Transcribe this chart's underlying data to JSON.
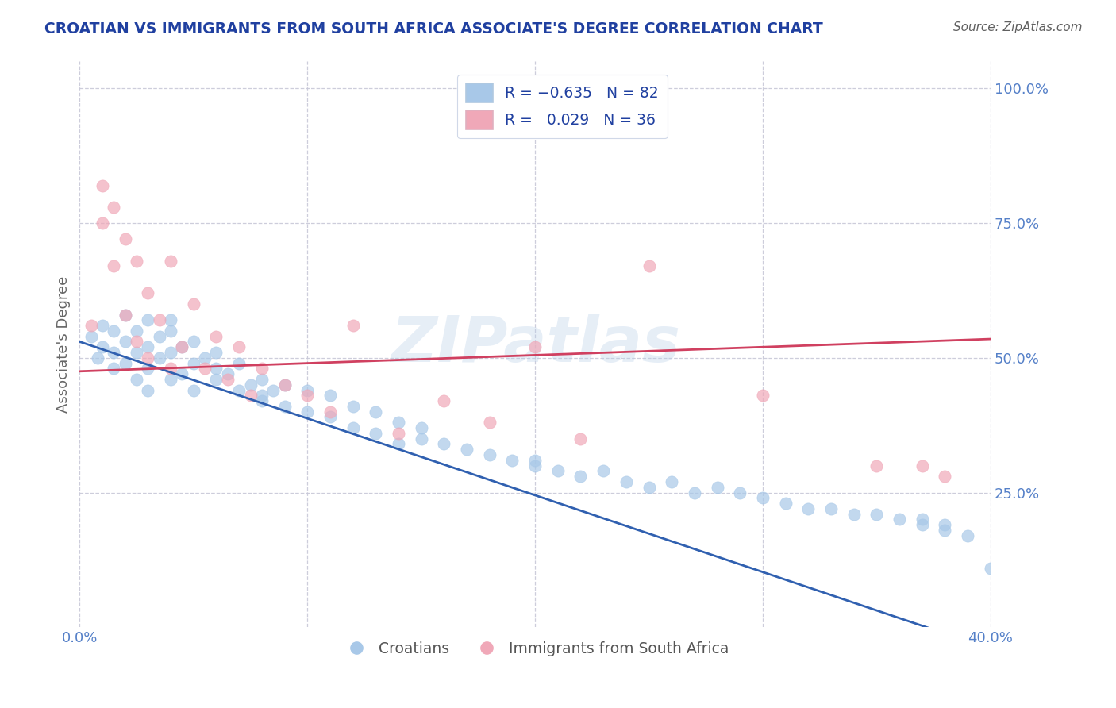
{
  "title": "CROATIAN VS IMMIGRANTS FROM SOUTH AFRICA ASSOCIATE'S DEGREE CORRELATION CHART",
  "source": "Source: ZipAtlas.com",
  "ylabel": "Associate's Degree",
  "watermark": "ZIPatlas",
  "blue_color": "#a8c8e8",
  "pink_color": "#f0a8b8",
  "blue_line_color": "#3060b0",
  "pink_line_color": "#d04060",
  "title_color": "#2040a0",
  "source_color": "#606060",
  "legend_text_color": "#2040a0",
  "background_color": "#ffffff",
  "grid_color": "#c8c8d8",
  "blue_line": {
    "x": [
      0.0,
      0.4
    ],
    "y": [
      0.53,
      -0.04
    ]
  },
  "pink_line": {
    "x": [
      0.0,
      0.4
    ],
    "y": [
      0.475,
      0.535
    ]
  },
  "blue_scatter_x": [
    0.005,
    0.008,
    0.01,
    0.01,
    0.015,
    0.015,
    0.015,
    0.02,
    0.02,
    0.02,
    0.025,
    0.025,
    0.025,
    0.03,
    0.03,
    0.03,
    0.03,
    0.035,
    0.035,
    0.04,
    0.04,
    0.04,
    0.045,
    0.045,
    0.05,
    0.05,
    0.05,
    0.055,
    0.06,
    0.06,
    0.065,
    0.07,
    0.07,
    0.075,
    0.08,
    0.08,
    0.085,
    0.09,
    0.09,
    0.1,
    0.1,
    0.11,
    0.11,
    0.12,
    0.12,
    0.13,
    0.13,
    0.14,
    0.14,
    0.15,
    0.16,
    0.17,
    0.18,
    0.19,
    0.2,
    0.21,
    0.22,
    0.24,
    0.25,
    0.27,
    0.29,
    0.3,
    0.31,
    0.33,
    0.35,
    0.36,
    0.37,
    0.37,
    0.38,
    0.38,
    0.39,
    0.4,
    0.32,
    0.34,
    0.28,
    0.26,
    0.23,
    0.15,
    0.2,
    0.08,
    0.06,
    0.04
  ],
  "blue_scatter_y": [
    0.54,
    0.5,
    0.56,
    0.52,
    0.55,
    0.51,
    0.48,
    0.58,
    0.53,
    0.49,
    0.55,
    0.51,
    0.46,
    0.57,
    0.52,
    0.48,
    0.44,
    0.54,
    0.5,
    0.55,
    0.51,
    0.46,
    0.52,
    0.47,
    0.53,
    0.49,
    0.44,
    0.5,
    0.51,
    0.46,
    0.47,
    0.49,
    0.44,
    0.45,
    0.46,
    0.42,
    0.44,
    0.45,
    0.41,
    0.44,
    0.4,
    0.43,
    0.39,
    0.41,
    0.37,
    0.4,
    0.36,
    0.38,
    0.34,
    0.37,
    0.34,
    0.33,
    0.32,
    0.31,
    0.3,
    0.29,
    0.28,
    0.27,
    0.26,
    0.25,
    0.25,
    0.24,
    0.23,
    0.22,
    0.21,
    0.2,
    0.2,
    0.19,
    0.19,
    0.18,
    0.17,
    0.11,
    0.22,
    0.21,
    0.26,
    0.27,
    0.29,
    0.35,
    0.31,
    0.43,
    0.48,
    0.57
  ],
  "pink_scatter_x": [
    0.005,
    0.01,
    0.01,
    0.015,
    0.015,
    0.02,
    0.02,
    0.025,
    0.025,
    0.03,
    0.03,
    0.035,
    0.04,
    0.04,
    0.045,
    0.05,
    0.055,
    0.06,
    0.065,
    0.07,
    0.075,
    0.08,
    0.09,
    0.1,
    0.11,
    0.12,
    0.14,
    0.16,
    0.18,
    0.2,
    0.22,
    0.25,
    0.3,
    0.35,
    0.37,
    0.38
  ],
  "pink_scatter_y": [
    0.56,
    0.82,
    0.75,
    0.78,
    0.67,
    0.72,
    0.58,
    0.68,
    0.53,
    0.62,
    0.5,
    0.57,
    0.68,
    0.48,
    0.52,
    0.6,
    0.48,
    0.54,
    0.46,
    0.52,
    0.43,
    0.48,
    0.45,
    0.43,
    0.4,
    0.56,
    0.36,
    0.42,
    0.38,
    0.52,
    0.35,
    0.67,
    0.43,
    0.3,
    0.3,
    0.28
  ]
}
